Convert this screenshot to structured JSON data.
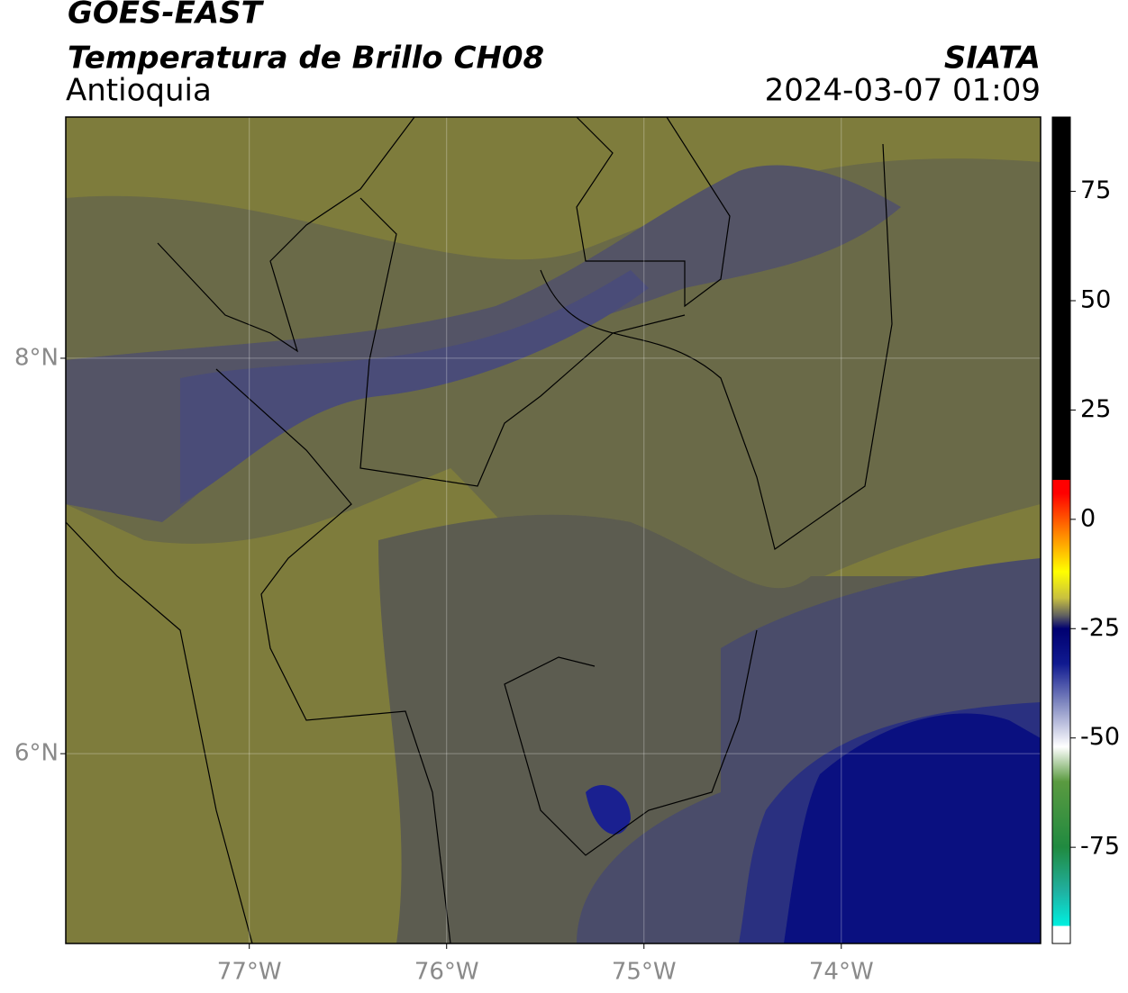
{
  "header": {
    "title": "GOES-EAST",
    "subtitle": "Temperatura de Brillo CH08",
    "region": "Antioquia",
    "source": "SIATA",
    "datetime": "2024-03-07 01:09"
  },
  "map_data": {
    "type": "map",
    "xlim": [
      -77.93,
      -72.99
    ],
    "ylim": [
      5.04,
      9.22
    ],
    "xticks": [
      {
        "value": -77,
        "label": "77°W"
      },
      {
        "value": -76,
        "label": "76°W"
      },
      {
        "value": -75,
        "label": "75°W"
      },
      {
        "value": -74,
        "label": "74°W"
      }
    ],
    "yticks": [
      {
        "value": 6,
        "label": "6°N"
      },
      {
        "value": 8,
        "label": "8°N"
      }
    ],
    "grid": true,
    "colorbar": {
      "lim": [
        -97,
        92
      ],
      "ticks": [
        75,
        50,
        25,
        0,
        -25,
        -50,
        -75
      ],
      "colormap": [
        {
          "value": -97,
          "color": "#ffffff"
        },
        {
          "value": -93,
          "color": "#ffffff"
        },
        {
          "value": -93,
          "color": "#00f0e0"
        },
        {
          "value": -85,
          "color": "#20b0a0"
        },
        {
          "value": -75,
          "color": "#208a40"
        },
        {
          "value": -60,
          "color": "#5a9a40"
        },
        {
          "value": -52,
          "color": "#ffffff"
        },
        {
          "value": -42,
          "color": "#8088c0"
        },
        {
          "value": -33,
          "color": "#101a90"
        },
        {
          "value": -25,
          "color": "#000070"
        },
        {
          "value": -22,
          "color": "#606060"
        },
        {
          "value": -18,
          "color": "#c8c040"
        },
        {
          "value": -12,
          "color": "#ffff00"
        },
        {
          "value": -4,
          "color": "#ff9000"
        },
        {
          "value": 6,
          "color": "#ff0000"
        },
        {
          "value": 9,
          "color": "#ff0000"
        },
        {
          "value": 9,
          "color": "#000000"
        },
        {
          "value": 92,
          "color": "#000000"
        }
      ]
    }
  }
}
